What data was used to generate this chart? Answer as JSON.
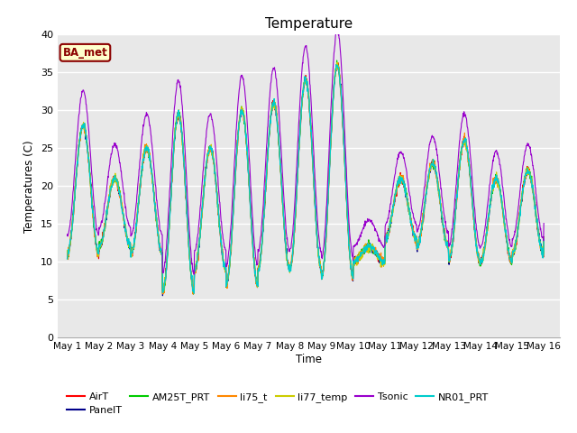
{
  "title": "Temperature",
  "xlabel": "Time",
  "ylabel": "Temperatures (C)",
  "ylim": [
    0,
    40
  ],
  "annotation_text": "BA_met",
  "annotation_color": "#8B0000",
  "background_color": "#e8e8e8",
  "series_colors": {
    "AirT": "#ff0000",
    "PanelT": "#00008B",
    "AM25T_PRT": "#00cc00",
    "li75_t": "#ff8800",
    "li77_temp": "#cccc00",
    "Tsonic": "#9900cc",
    "NR01_PRT": "#00cccc"
  },
  "xtick_labels": [
    "May 1",
    "May 2",
    "May 3",
    "May 4",
    "May 5",
    "May 6",
    "May 7",
    "May 8",
    "May 9",
    "May 10",
    "May 11",
    "May 12",
    "May 13",
    "May 14",
    "May 15",
    "May 16"
  ],
  "xtick_positions": [
    0,
    1,
    2,
    3,
    4,
    5,
    6,
    7,
    8,
    9,
    10,
    11,
    12,
    13,
    14,
    15
  ],
  "ytick_positions": [
    0,
    5,
    10,
    15,
    20,
    25,
    30,
    35,
    40
  ],
  "peaks": [
    28,
    21,
    25,
    29.5,
    25,
    30,
    31,
    34,
    36,
    12,
    21,
    23,
    26,
    21,
    22,
    25
  ],
  "troughs": [
    11,
    12,
    11,
    6,
    9,
    7,
    9,
    9,
    8,
    10,
    13,
    12,
    10,
    10,
    11,
    13
  ]
}
